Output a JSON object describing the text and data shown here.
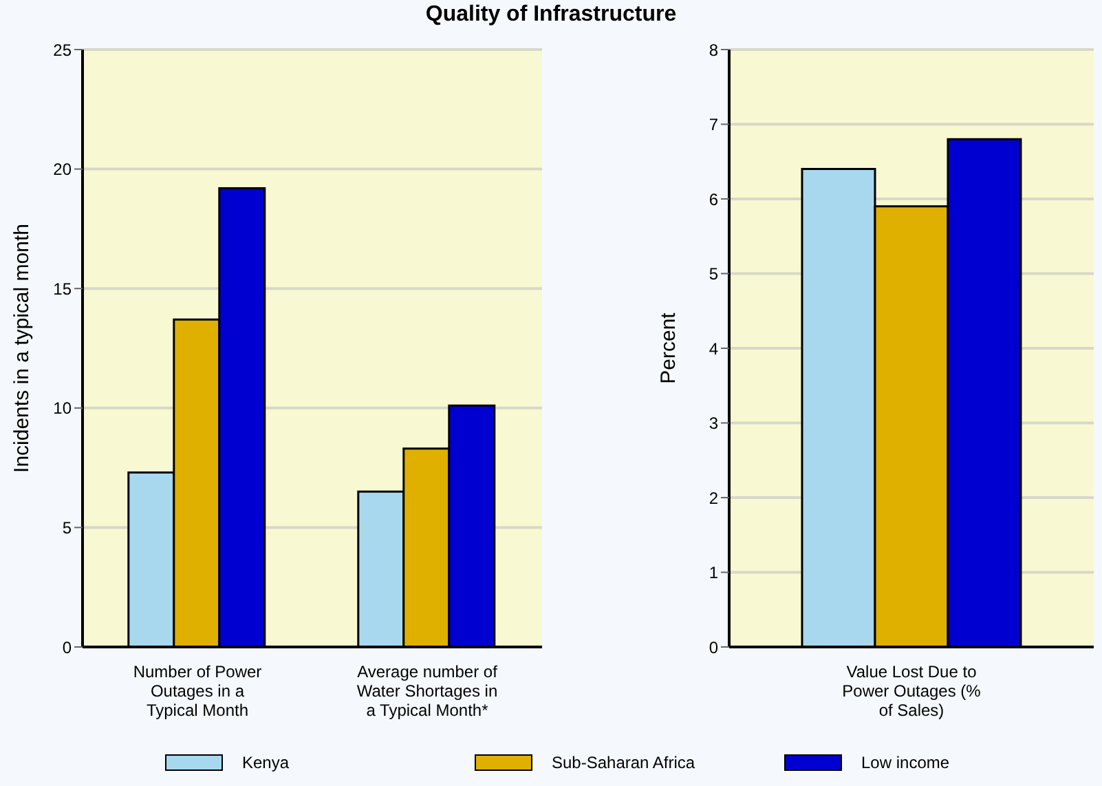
{
  "chart_data": [
    {
      "type": "bar",
      "title": "Quality of Infrastructure",
      "ylabel": "Incidents in a typical month",
      "categories": [
        "Number of Power Outages in a Typical Month",
        "Average number of Water Shortages in a Typical Month*"
      ],
      "series": [
        {
          "name": "Kenya",
          "color": "#a8d8ee",
          "values": [
            7.3,
            6.5
          ]
        },
        {
          "name": "Sub-Saharan Africa",
          "color": "#e0b000",
          "values": [
            13.7,
            8.3
          ]
        },
        {
          "name": "Low income",
          "color": "#0000d0",
          "values": [
            19.2,
            10.1
          ]
        }
      ],
      "ylim": [
        0,
        25
      ],
      "yticks": [
        0,
        5,
        10,
        15,
        20,
        25
      ],
      "grid": "y",
      "legend": "bottom"
    },
    {
      "type": "bar",
      "ylabel": "Percent",
      "categories": [
        "Value Lost Due to Power Outages (% of Sales)"
      ],
      "series": [
        {
          "color": "#a8d8ee",
          "values": [
            6.4
          ]
        },
        {
          "color": "#e0b000",
          "values": [
            5.9
          ]
        },
        {
          "color": "#0000d0",
          "values": [
            6.8
          ]
        }
      ],
      "ylim": [
        0,
        8
      ],
      "yticks": [
        0,
        1,
        2,
        3,
        4,
        5,
        6,
        7,
        8
      ],
      "grid": "y"
    }
  ]
}
